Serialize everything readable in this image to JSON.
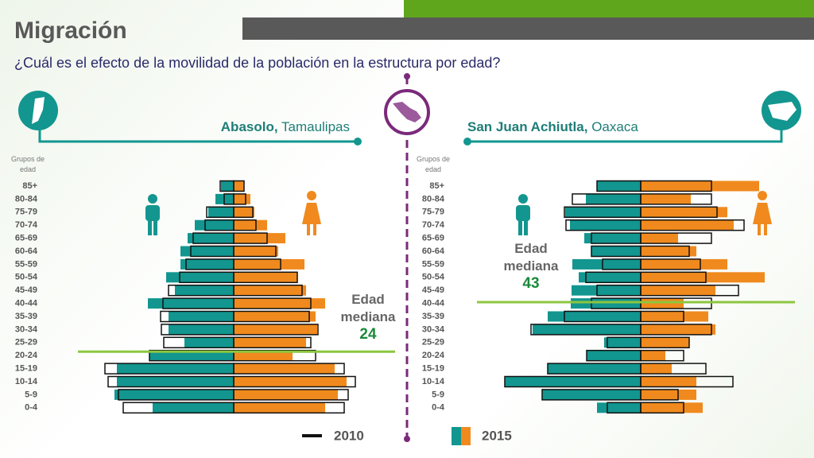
{
  "title": "Migración",
  "subtitle": "¿Cuál es el efecto de la movilidad de la población en la estructura por edad?",
  "chart_data": [
    {
      "type": "pyramid",
      "place": "Abasolo,",
      "state": "Tamaulipas",
      "axis_title": "Grupos de edad",
      "categories": [
        "85+",
        "80-84",
        "75-79",
        "70-74",
        "65-69",
        "60-64",
        "55-59",
        "50-54",
        "45-49",
        "40-44",
        "35-39",
        "30-34",
        "25-29",
        "20-24",
        "15-19",
        "10-14",
        "5-9",
        "0-4"
      ],
      "xlim": [
        0,
        18
      ],
      "series": [
        {
          "name": "2015",
          "male_color": "#12968f",
          "female_color": "#f08a1e",
          "male": [
            1.6,
            2.3,
            3.2,
            4.9,
            5.8,
            6.7,
            6.7,
            8.5,
            7.4,
            10.8,
            8.2,
            8.2,
            6.2,
            10.6,
            14.7,
            14.7,
            15.0,
            10.2
          ],
          "female": [
            1.3,
            2.1,
            2.6,
            4.2,
            6.5,
            5.6,
            8.9,
            8.0,
            9.1,
            11.5,
            10.3,
            10.5,
            9.1,
            7.4,
            12.7,
            14.2,
            13.1,
            11.5
          ]
        },
        {
          "name": "2010",
          "outline_color": "#111111",
          "male": [
            1.7,
            1.2,
            3.4,
            3.6,
            5.1,
            5.4,
            6.0,
            6.8,
            8.2,
            8.9,
            9.2,
            9.1,
            8.8,
            10.6,
            16.2,
            15.8,
            14.5,
            13.9
          ],
          "female": [
            1.3,
            1.5,
            2.4,
            2.8,
            4.2,
            5.3,
            5.9,
            8.0,
            8.6,
            9.7,
            9.5,
            10.6,
            9.7,
            10.3,
            13.9,
            15.3,
            14.4,
            13.9
          ]
        }
      ],
      "median_label": "Edad mediana",
      "median": 24,
      "median_color": "#8cc63f"
    },
    {
      "type": "pyramid",
      "place": "San Juan Achiutla,",
      "state": "Oaxaca",
      "axis_title": "Grupos de edad",
      "categories": [
        "85+",
        "80-84",
        "75-79",
        "70-74",
        "65-69",
        "60-64",
        "55-59",
        "50-54",
        "45-49",
        "40-44",
        "35-39",
        "30-34",
        "25-29",
        "20-24",
        "15-19",
        "10-14",
        "5-9",
        "0-4"
      ],
      "xlim": [
        0,
        18
      ],
      "series": [
        {
          "name": "2015",
          "male_color": "#12968f",
          "female_color": "#f08a1e",
          "male": [
            5.5,
            6.9,
            9.5,
            8.9,
            7.1,
            6.2,
            8.6,
            7.8,
            8.7,
            8.8,
            11.7,
            13.6,
            4.6,
            6.8,
            11.7,
            17.1,
            12.4,
            5.5
          ],
          "female": [
            14.9,
            6.3,
            10.9,
            11.7,
            4.7,
            7.0,
            10.9,
            15.6,
            9.4,
            5.4,
            8.5,
            9.4,
            6.1,
            3.1,
            3.9,
            7.0,
            7.0,
            7.8
          ]
        },
        {
          "name": "2010",
          "outline_color": "#111111",
          "male": [
            5.5,
            8.6,
            9.6,
            9.4,
            6.2,
            6.2,
            4.8,
            6.9,
            5.5,
            6.2,
            9.6,
            13.8,
            4.2,
            6.8,
            11.7,
            17.1,
            12.4,
            4.2
          ],
          "female": [
            8.9,
            8.9,
            9.6,
            13.0,
            8.9,
            6.1,
            7.5,
            8.2,
            12.3,
            8.9,
            5.4,
            8.9,
            6.1,
            5.4,
            8.2,
            11.6,
            4.7,
            5.4
          ]
        }
      ],
      "median_label": "Edad mediana",
      "median": 43,
      "median_color": "#8cc63f"
    }
  ]
}
